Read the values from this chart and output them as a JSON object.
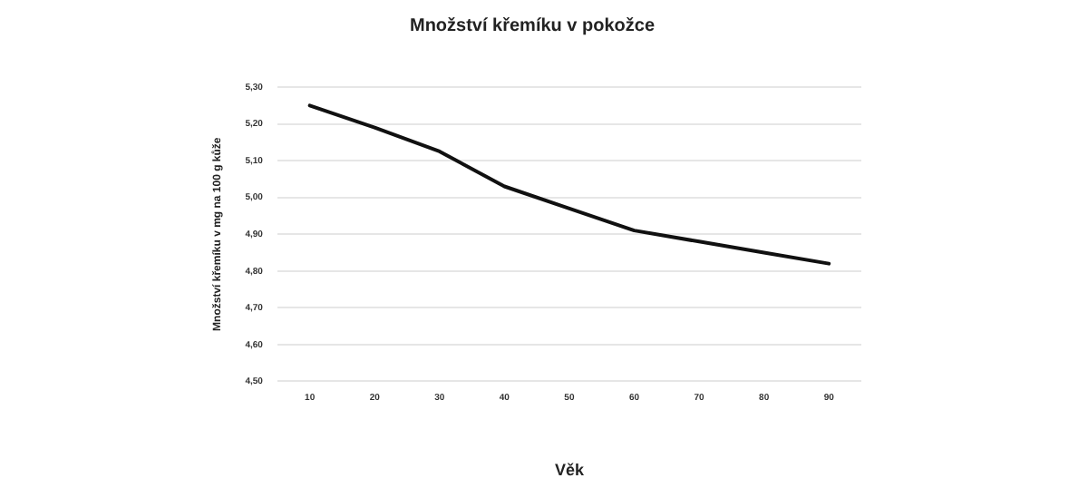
{
  "chart_data": {
    "type": "line",
    "title": "Množství křemíku v pokožce",
    "xlabel": "Věk",
    "ylabel": "Množství křemíku v mg na 100 g kůže",
    "categories": [
      "10",
      "20",
      "30",
      "40",
      "50",
      "60",
      "70",
      "80",
      "90"
    ],
    "series": [
      {
        "color": "#111111",
        "values": [
          5.25,
          5.19,
          5.125,
          5.03,
          4.97,
          4.91,
          4.88,
          4.85,
          4.82
        ]
      }
    ],
    "ylim": [
      4.5,
      5.3
    ],
    "yticks": [
      {
        "value": 4.5,
        "label": "4,50"
      },
      {
        "value": 4.6,
        "label": "4,60"
      },
      {
        "value": 4.7,
        "label": "4,70"
      },
      {
        "value": 4.8,
        "label": "4,80"
      },
      {
        "value": 4.9,
        "label": "4,90"
      },
      {
        "value": 5.0,
        "label": "5,00"
      },
      {
        "value": 5.1,
        "label": "5,10"
      },
      {
        "value": 5.2,
        "label": "5,20"
      },
      {
        "value": 5.3,
        "label": "5,30"
      }
    ],
    "grid": "y",
    "marker": "none",
    "line_style": "solid",
    "legend": false
  }
}
